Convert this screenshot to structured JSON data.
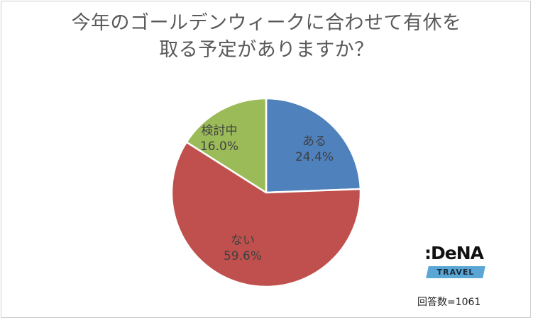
{
  "title": {
    "line1": "今年のゴールデンウィークに合わせて有休を",
    "line2": "取る予定がありますか？"
  },
  "chart_data": {
    "type": "pie",
    "title": "今年のゴールデンウィークに合わせて有休を取る予定がありますか？",
    "slices": [
      {
        "label": "ある",
        "value": 24.4,
        "value_label": "24.4%",
        "color": "#4f81bd"
      },
      {
        "label": "ない",
        "value": 59.6,
        "value_label": "59.6%",
        "color": "#c0504d"
      },
      {
        "label": "検討中",
        "value": 16.0,
        "value_label": "16.0%",
        "color": "#9bbb59"
      }
    ],
    "start_angle": "12 o'clock",
    "direction": "clockwise",
    "legend": "none"
  },
  "logo": {
    "word": ":DeNA",
    "sub": "TRAVEL"
  },
  "footnote": "回答数=1061"
}
